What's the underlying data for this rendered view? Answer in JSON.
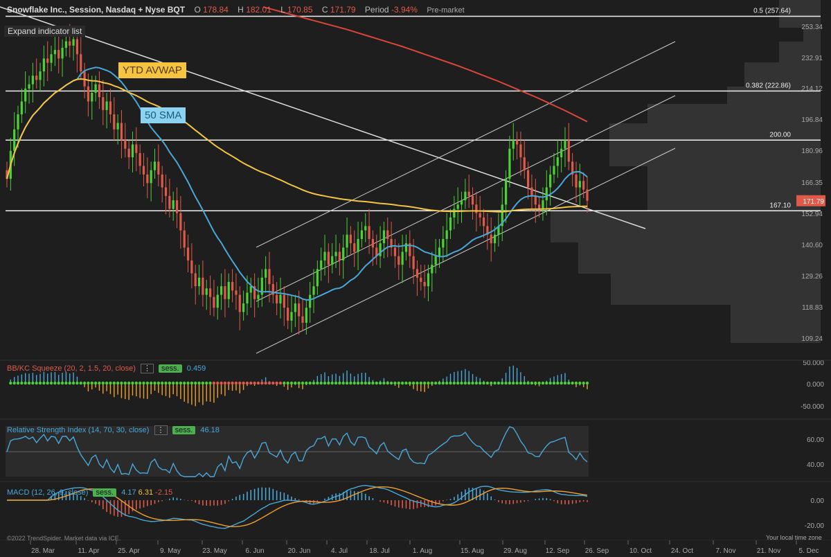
{
  "header": {
    "title": "Snowflake Inc., Session, Nasdaq + Nyse BQT",
    "o_label": "O",
    "o_value": "178.84",
    "h_label": "H",
    "h_value": "182.01",
    "l_label": "L",
    "l_value": "170.85",
    "c_label": "C",
    "c_value": "171.79",
    "period_label": "Period",
    "period_value": "-3.94%",
    "session_note": "Pre-market"
  },
  "expand_label": "Expand indicator list",
  "annotations": {
    "avwap": "YTD AVWAP",
    "sma": "50 SMA"
  },
  "hlines": [
    {
      "label": "0.5 (257.64)",
      "value": 257.64
    },
    {
      "label": "0.382 (222.86)",
      "value": 222.86
    },
    {
      "label": "200.00",
      "value": 200.0
    },
    {
      "label": "167.10",
      "value": 167.1
    }
  ],
  "price_axis_ticks": [
    "253.34",
    "232.91",
    "214.12",
    "196.84",
    "180.96",
    "166.35",
    "152.94",
    "140.60",
    "129.26",
    "118.83",
    "109.24"
  ],
  "last_price": "171.79",
  "x_axis_ticks": [
    "28. Mar",
    "11. Apr",
    "25. Apr",
    "9. May",
    "23. May",
    "6. Jun",
    "20. Jun",
    "4. Jul",
    "18. Jul",
    "1. Aug",
    "15. Aug",
    "29. Aug",
    "12. Sep",
    "26. Sep",
    "10. Oct",
    "24. Oct",
    "7. Nov",
    "21. Nov",
    "5. Dec"
  ],
  "squeeze": {
    "title": "BB/KC Squeeze (20, 2, 1.5, 20, close)",
    "sess": "sess.",
    "value": "0.459",
    "ticks": [
      "50.000",
      "0.000",
      "-50.000"
    ]
  },
  "rsi": {
    "title": "Relative Strength Index (14, 70, 30, close)",
    "sess": "sess.",
    "value": "46.18",
    "ticks": [
      "60.00",
      "40.00"
    ]
  },
  "macd": {
    "title": "MACD (12, 26, 9, close)",
    "sess": "sess.",
    "v1": "4.17",
    "v2": "6.31",
    "v3": "-2.15",
    "ticks": [
      "0.00",
      "-20.00"
    ]
  },
  "footer_left": "©2022 TrendSpider. Market data via ICE.",
  "footer_right": "Your local time zone",
  "colors": {
    "up": "#4cd137",
    "down": "#e05a4a",
    "avwap": "#f5c542",
    "sma": "#4aa8d8",
    "ma200": "#d9463a",
    "bg": "#1e1e1e"
  },
  "chart_data": {
    "type": "candlestick",
    "y_axis": {
      "min": 104,
      "max": 262
    },
    "closes": [
      182,
      195,
      205,
      212,
      218,
      224,
      226,
      230,
      228,
      232,
      238,
      236,
      240,
      242,
      238,
      243,
      246,
      244,
      247,
      240,
      232,
      225,
      218,
      222,
      226,
      220,
      214,
      218,
      212,
      205,
      208,
      200,
      196,
      192,
      198,
      194,
      188,
      184,
      180,
      186,
      190,
      184,
      178,
      174,
      168,
      172,
      166,
      158,
      150,
      144,
      138,
      132,
      136,
      128,
      131,
      127,
      122,
      128,
      132,
      126,
      134,
      130,
      128,
      120,
      124,
      129,
      132,
      126,
      128,
      136,
      140,
      133,
      128,
      124,
      128,
      122,
      116,
      120,
      124,
      118,
      115,
      122,
      128,
      132,
      140,
      144,
      148,
      142,
      146,
      148,
      144,
      150,
      156,
      152,
      148,
      154,
      158,
      160,
      154,
      150,
      146,
      152,
      158,
      154,
      150,
      146,
      142,
      148,
      152,
      146,
      140,
      136,
      134,
      132,
      138,
      142,
      146,
      150,
      154,
      158,
      164,
      168,
      170,
      172,
      176,
      174,
      170,
      166,
      164,
      160,
      156,
      152,
      156,
      160,
      170,
      182,
      196,
      200,
      198,
      192,
      186,
      178,
      174,
      170,
      168,
      172,
      178,
      184,
      188,
      192,
      196,
      200,
      190,
      184,
      178,
      181,
      177,
      171.79
    ],
    "ma200": [
      262,
      261.3,
      260.6,
      259.9,
      259.2,
      258.5,
      257.8,
      257.1,
      256.4,
      255.7,
      255,
      254.3,
      253.6,
      252.9,
      252.2,
      251.5,
      250.7,
      249.9,
      249.1,
      248.3,
      247.5,
      246.7,
      245.9,
      245.1,
      244.3,
      243.5,
      242.6,
      241.7,
      240.8,
      239.9,
      239,
      238.1,
      237.2,
      236.3,
      235.4,
      234.5,
      233.5,
      232.5,
      231.5,
      230.5,
      229.5,
      228.5,
      227.5,
      226.4,
      225.3,
      224.2,
      223.1,
      222,
      220.9,
      219.8,
      218.6,
      217.4,
      216.2,
      215,
      213.8,
      212.5,
      211.2,
      209.9,
      208.6
    ],
    "avwap_label": "YTD AVWAP",
    "sma50_label": "50 SMA"
  }
}
